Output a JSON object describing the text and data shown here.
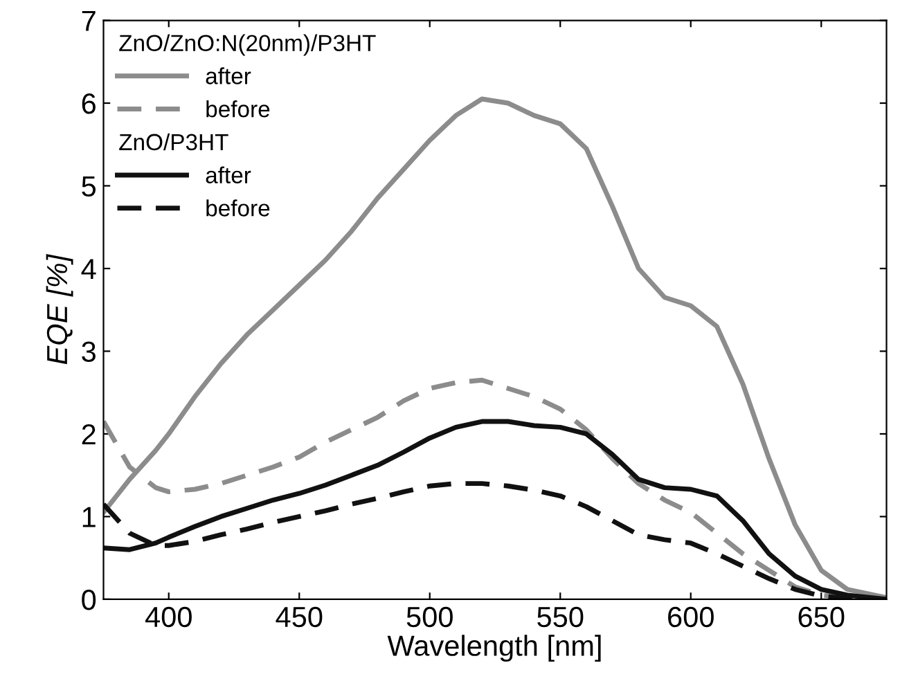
{
  "chart_data": {
    "type": "line",
    "xlabel": "Wavelength [nm]",
    "ylabel": "EQE [%]",
    "x": [
      375,
      385,
      395,
      400,
      410,
      420,
      430,
      440,
      450,
      460,
      470,
      480,
      490,
      500,
      510,
      520,
      530,
      540,
      550,
      560,
      570,
      580,
      590,
      600,
      610,
      620,
      630,
      640,
      650,
      660,
      675
    ],
    "series": [
      {
        "name": "after",
        "color": "#8c8c8c",
        "line_style": "solid",
        "values": [
          1.05,
          1.45,
          1.8,
          2.0,
          2.45,
          2.85,
          3.2,
          3.5,
          3.8,
          4.1,
          4.45,
          4.85,
          5.2,
          5.55,
          5.85,
          6.05,
          6.0,
          5.85,
          5.75,
          5.45,
          4.75,
          4.0,
          3.65,
          3.55,
          3.3,
          2.6,
          1.7,
          0.9,
          0.35,
          0.12,
          0.02
        ]
      },
      {
        "name": "before",
        "color": "#8c8c8c",
        "line_style": "dashed",
        "values": [
          2.15,
          1.6,
          1.35,
          1.3,
          1.33,
          1.4,
          1.5,
          1.6,
          1.72,
          1.9,
          2.05,
          2.2,
          2.4,
          2.55,
          2.62,
          2.65,
          2.55,
          2.45,
          2.3,
          2.05,
          1.7,
          1.4,
          1.2,
          1.05,
          0.8,
          0.55,
          0.35,
          0.15,
          0.05,
          0.02,
          0.0
        ]
      },
      {
        "name": "after",
        "color": "#111111",
        "line_style": "solid",
        "values": [
          0.62,
          0.6,
          0.68,
          0.75,
          0.88,
          1.0,
          1.1,
          1.2,
          1.28,
          1.38,
          1.5,
          1.62,
          1.78,
          1.95,
          2.08,
          2.15,
          2.15,
          2.1,
          2.08,
          2.0,
          1.75,
          1.45,
          1.35,
          1.33,
          1.25,
          0.95,
          0.55,
          0.28,
          0.12,
          0.05,
          0.0
        ]
      },
      {
        "name": "before",
        "color": "#111111",
        "line_style": "dashed",
        "values": [
          1.15,
          0.8,
          0.65,
          0.65,
          0.7,
          0.78,
          0.85,
          0.93,
          1.0,
          1.07,
          1.15,
          1.22,
          1.3,
          1.37,
          1.4,
          1.4,
          1.37,
          1.32,
          1.25,
          1.12,
          0.95,
          0.78,
          0.72,
          0.68,
          0.55,
          0.4,
          0.25,
          0.12,
          0.04,
          0.01,
          0.0
        ]
      }
    ],
    "annotations": [
      "ZnO/ZnO:N(20nm)/P3HT",
      "ZnO/P3HT"
    ],
    "xlim": [
      375,
      675
    ],
    "xticks": [
      400,
      450,
      500,
      550,
      600,
      650
    ],
    "ylim": [
      0,
      7
    ],
    "yticks": [
      0,
      1,
      2,
      3,
      4,
      5,
      6,
      7
    ],
    "grid": false,
    "legend": "top left",
    "marker": "none"
  }
}
